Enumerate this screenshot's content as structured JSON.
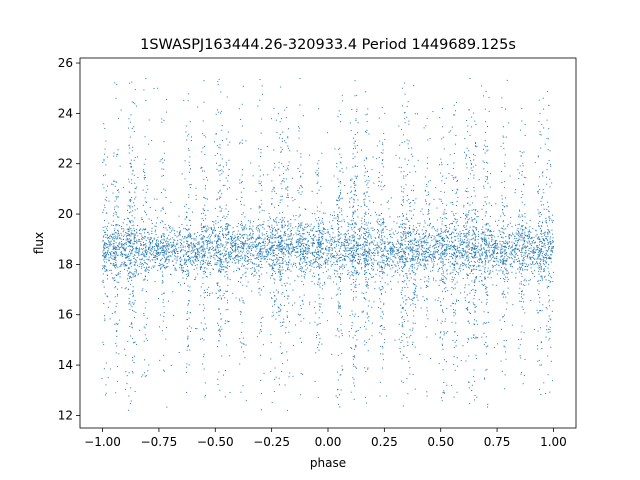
{
  "chart_data": {
    "type": "scatter",
    "title": "1SWASPJ163444.26-320933.4 Period 1449689.125s",
    "xlabel": "phase",
    "ylabel": "flux",
    "xlim": [
      -1.1,
      1.1
    ],
    "ylim": [
      11.5,
      26.2
    ],
    "x_ticks": [
      -1.0,
      -0.75,
      -0.5,
      -0.25,
      0.0,
      0.25,
      0.5,
      0.75,
      1.0
    ],
    "x_tick_labels": [
      "−1.00",
      "−0.75",
      "−0.50",
      "−0.25",
      "0.00",
      "0.25",
      "0.50",
      "0.75",
      "1.00"
    ],
    "y_ticks": [
      12,
      14,
      16,
      18,
      20,
      22,
      24,
      26
    ],
    "y_tick_labels": [
      "12",
      "14",
      "16",
      "18",
      "20",
      "22",
      "24",
      "26"
    ],
    "grid": false,
    "marker_color": "#1f77b4",
    "series": [
      {
        "phase_range": [
          -1.0,
          1.0
        ],
        "baseline_flux": 18.6,
        "typical_band": [
          17.4,
          19.8
        ],
        "outlier_range": [
          12.2,
          25.4
        ],
        "points": [
          [
            -0.99,
            23.4
          ],
          [
            -0.94,
            24.6
          ],
          [
            -0.88,
            25.2
          ],
          [
            -0.86,
            14.1
          ],
          [
            -0.81,
            15.2
          ],
          [
            -0.73,
            13.8
          ],
          [
            -0.62,
            24.5
          ],
          [
            -0.55,
            25.3
          ],
          [
            -0.48,
            13.0
          ],
          [
            -0.45,
            14.8
          ],
          [
            -0.38,
            23.5
          ],
          [
            -0.24,
            24.2
          ],
          [
            -0.21,
            16.2
          ],
          [
            -0.18,
            12.2
          ],
          [
            -0.12,
            22.4
          ],
          [
            -0.04,
            15.2
          ],
          [
            0.05,
            24.1
          ],
          [
            0.11,
            13.5
          ],
          [
            0.12,
            25.3
          ],
          [
            0.17,
            14.9
          ],
          [
            0.33,
            24.3
          ],
          [
            0.38,
            25.1
          ],
          [
            0.44,
            23.8
          ],
          [
            0.51,
            12.9
          ],
          [
            0.56,
            14.7
          ],
          [
            0.62,
            23.5
          ],
          [
            0.65,
            15.8
          ],
          [
            0.7,
            13.8
          ],
          [
            0.78,
            22.6
          ],
          [
            0.86,
            23.7
          ],
          [
            0.94,
            14.0
          ],
          [
            0.98,
            15.0
          ],
          [
            0.35,
            14.3
          ],
          [
            -0.3,
            15.4
          ],
          [
            0.24,
            22.0
          ]
        ]
      }
    ]
  }
}
